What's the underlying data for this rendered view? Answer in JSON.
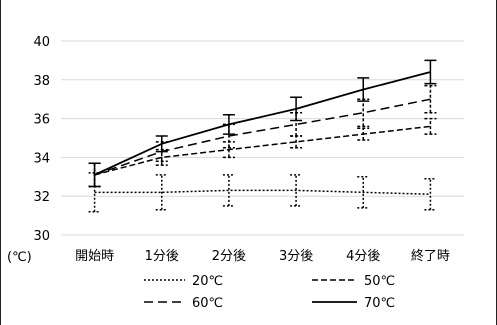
{
  "chart_data": {
    "type": "line",
    "y_unit_label": "(℃)",
    "categories": [
      "開始時",
      "1分後",
      "2分後",
      "3分後",
      "4分後",
      "終了時"
    ],
    "ylim": [
      30,
      40
    ],
    "y_ticks": [
      "30",
      "32",
      "34",
      "36",
      "38",
      "40"
    ],
    "grid": true,
    "legend_position": "bottom",
    "series": [
      {
        "name": "20℃",
        "style": "dotted",
        "color": "#000000",
        "values": [
          32.2,
          32.2,
          32.3,
          32.3,
          32.2,
          32.1
        ],
        "error": [
          1.0,
          0.9,
          0.8,
          0.8,
          0.8,
          0.8
        ]
      },
      {
        "name": "50℃",
        "style": "dashed",
        "color": "#000000",
        "values": [
          33.1,
          34.0,
          34.4,
          34.8,
          35.2,
          35.6
        ],
        "error": [
          0.6,
          0.4,
          0.4,
          0.3,
          0.3,
          0.4
        ]
      },
      {
        "name": "60℃",
        "style": "longdash",
        "color": "#000000",
        "values": [
          33.1,
          34.3,
          35.1,
          35.7,
          36.3,
          37.0
        ],
        "error": [
          0.6,
          0.5,
          0.6,
          0.6,
          0.7,
          0.7
        ]
      },
      {
        "name": "70℃",
        "style": "solid",
        "color": "#000000",
        "values": [
          33.1,
          34.7,
          35.7,
          36.5,
          37.5,
          38.4
        ],
        "error": [
          0.6,
          0.4,
          0.5,
          0.6,
          0.6,
          0.6
        ]
      }
    ]
  }
}
